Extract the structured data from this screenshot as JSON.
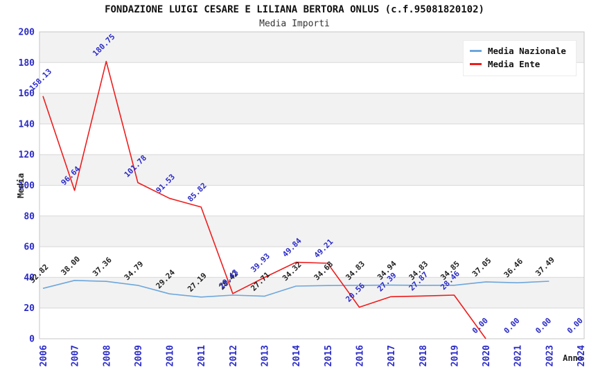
{
  "header": {
    "title": "FONDAZIONE LUIGI CESARE E LILIANA BERTORA ONLUS (c.f.95081820102)",
    "subtitle": "Media Importi"
  },
  "legend": {
    "items": [
      {
        "label": "Media Nazionale",
        "color": "#6ca6dc"
      },
      {
        "label": "Media Ente",
        "color": "#ee1c1c"
      }
    ]
  },
  "colors": {
    "tick_text": "#2a2ac8",
    "national_label_text": "#222222",
    "ente_label_text": "#2a2ac8",
    "band_gray": "#f2f2f2",
    "band_white": "#ffffff",
    "gridline": "#d8d8d8",
    "frame": "#c6c6c6",
    "national_line": "#6ca6dc",
    "ente_line": "#ee1c1c"
  },
  "chart_data": {
    "type": "line",
    "title": "FONDAZIONE LUIGI CESARE E LILIANA BERTORA ONLUS (c.f.95081820102)",
    "subtitle": "Media Importi",
    "xlabel": "Anno",
    "ylabel": "Media",
    "ylim": [
      0,
      200
    ],
    "ytick_step": 20,
    "yticks": [
      0,
      20,
      40,
      60,
      80,
      100,
      120,
      140,
      160,
      180,
      200
    ],
    "grid": true,
    "banded_background": true,
    "legend_position": "top-right",
    "categories": [
      "2006",
      "2007",
      "2008",
      "2009",
      "2010",
      "2011",
      "2012",
      "2013",
      "2014",
      "2015",
      "2016",
      "2017",
      "2018",
      "2019",
      "2020",
      "2021",
      "2023",
      "2024"
    ],
    "series": [
      {
        "name": "Media Nazionale",
        "color": "#6ca6dc",
        "label_color": "#222222",
        "values": [
          32.82,
          38.0,
          37.36,
          34.79,
          29.24,
          27.19,
          28.42,
          27.71,
          34.32,
          34.68,
          34.83,
          34.94,
          34.83,
          34.85,
          37.05,
          36.46,
          37.49,
          null
        ]
      },
      {
        "name": "Media Ente",
        "color": "#ee1c1c",
        "label_color": "#2a2ac8",
        "values": [
          158.13,
          96.64,
          180.75,
          101.78,
          91.53,
          85.82,
          29.43,
          39.93,
          49.84,
          49.21,
          20.56,
          27.39,
          27.87,
          28.46,
          0.0,
          0.0,
          0.0,
          0.0
        ]
      }
    ]
  }
}
